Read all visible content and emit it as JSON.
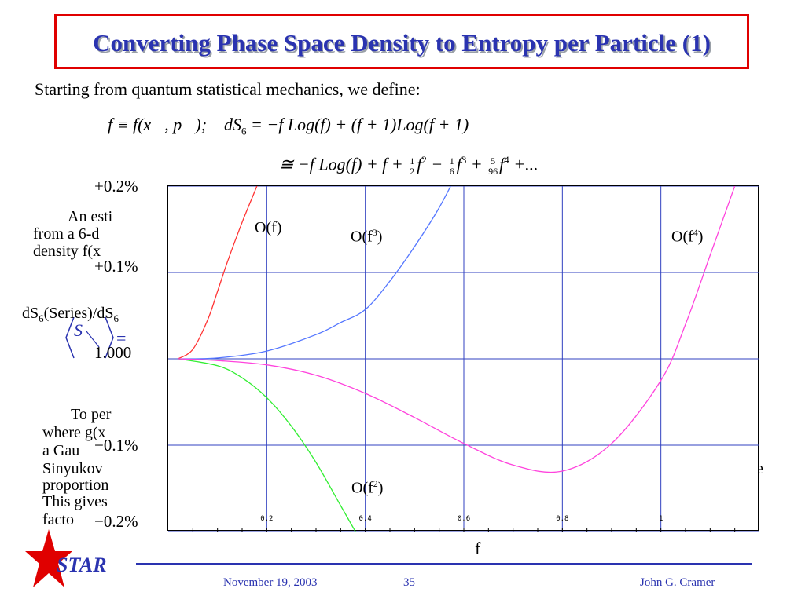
{
  "slide": {
    "title": "Converting Phase Space Density to Entropy per Particle (1)",
    "intro": "Starting from quantum statistical mechanics, we define:",
    "colors": {
      "title": "#2a33b0",
      "title_border": "#e00000",
      "footer": "#2a33b0"
    }
  },
  "equation": {
    "line1_def": "f ≡ f(x⃗, p⃗);",
    "line1_ds": "dS",
    "line1_sub": "6",
    "line1_rhs": "= −f Log(f) + (f + 1)Log(f + 1)",
    "line2_lead": "≅ −f Log(f) + f +",
    "frac1_num": "1",
    "frac1_den": "2",
    "term2": "f",
    "pow2": "2",
    "op2": "−",
    "frac2_num": "1",
    "frac2_den": "6",
    "term3": "f",
    "pow3": "3",
    "op3": "+",
    "frac3_num": "5",
    "frac3_den": "96",
    "term4": "f",
    "pow4": "4",
    "tail": "+..."
  },
  "background_text": {
    "line1": "An esti",
    "line2": "from a 6-d",
    "line3": "density f(x",
    "line4": "To per",
    "line5": "where g(x",
    "line6": "a Gau",
    "line7": "Sinyukov",
    "line8": "proportion",
    "line9": "This gives",
    "line10": "facto",
    "right_fragment": "e",
    "s_symbol": "S",
    "s_eq": "="
  },
  "chart_data": {
    "type": "line",
    "title": "",
    "xlabel": "f",
    "ylabel": "dS6(Series)/dS6",
    "ylabel_main": "dS",
    "ylabel_sub1": "6",
    "ylabel_mid": "(Series)/dS",
    "ylabel_sub2": "6",
    "xlim": [
      0,
      1.2
    ],
    "ylim": [
      -0.002,
      0.002
    ],
    "x_ticks": [
      "0.2",
      "0.4",
      "0.6",
      "0.8",
      "1"
    ],
    "x_tick_values": [
      0.2,
      0.4,
      0.6,
      0.8,
      1.0
    ],
    "y_tick_labels": [
      "+0.2%",
      "+0.1%",
      "1.000",
      "−0.1%",
      "−0.2%"
    ],
    "y_tick_values": [
      0.002,
      0.001,
      0,
      -0.001,
      -0.002
    ],
    "grid": true,
    "colors": {
      "grid": "#3040c0",
      "axes": "#000000"
    },
    "series": [
      {
        "name": "O(f)",
        "label_main": "O(f)",
        "label_sup": "",
        "color": "#ff3333",
        "x": [
          0.02,
          0.05,
          0.08,
          0.1,
          0.12,
          0.15,
          0.18,
          0.2
        ],
        "y": [
          0.0,
          0.00011,
          0.00045,
          0.00078,
          0.00112,
          0.00158,
          0.002,
          0.0023
        ]
      },
      {
        "name": "O(f2)",
        "label_main": "O(f",
        "label_sup": "2",
        "color": "#33ee33",
        "x": [
          0.02,
          0.1,
          0.15,
          0.2,
          0.25,
          0.3,
          0.35,
          0.4
        ],
        "y": [
          0.0,
          -8e-05,
          -0.00022,
          -0.00045,
          -0.00078,
          -0.0012,
          -0.0017,
          -0.0022
        ]
      },
      {
        "name": "O(f3)",
        "label_main": "O(f",
        "label_sup": "3",
        "color": "#5577ff",
        "x": [
          0.02,
          0.1,
          0.2,
          0.3,
          0.35,
          0.4,
          0.45,
          0.5,
          0.55,
          0.6
        ],
        "y": [
          0.0,
          1e-05,
          9e-05,
          0.00028,
          0.00042,
          0.00057,
          0.0009,
          0.0013,
          0.00175,
          0.0023
        ]
      },
      {
        "name": "O(f4)",
        "label_main": "O(f",
        "label_sup": "4",
        "color": "#ff44dd",
        "x": [
          0.02,
          0.1,
          0.2,
          0.3,
          0.4,
          0.5,
          0.6,
          0.7,
          0.8,
          0.9,
          1.0,
          1.05,
          1.1,
          1.15
        ],
        "y": [
          0.0,
          -2e-05,
          -7e-05,
          -0.00019,
          -0.0004,
          -0.00068,
          -0.00098,
          -0.00123,
          -0.0013,
          -0.00098,
          -0.00025,
          0.0004,
          0.0012,
          0.002
        ]
      }
    ]
  },
  "footer": {
    "logo": "STAR",
    "date": "November 19, 2003",
    "page": "35",
    "author": "John G. Cramer"
  }
}
